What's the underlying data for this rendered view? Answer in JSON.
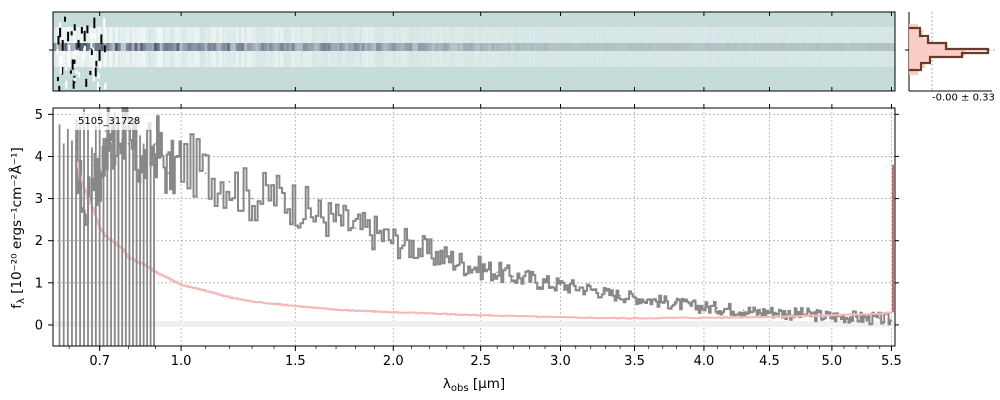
{
  "chart_data": {
    "type": "line",
    "title": "",
    "object_id": "5105_31728",
    "xlabel_main": "λ",
    "xlabel_sub": "obs",
    "xlabel_unit": " [μm]",
    "ylabel_text": "f",
    "ylabel_sub": "λ",
    "ylabel_units": " [10⁻²⁰ ergs⁻¹cm⁻²Å⁻¹]",
    "x_ticks": [
      "0.7",
      "1.0",
      "1.5",
      "2.0",
      "2.5",
      "3.0",
      "3.5",
      "4.0",
      "4.5",
      "5.0",
      "5.5"
    ],
    "x_tick_values": [
      0.7,
      1.0,
      1.5,
      2.0,
      2.5,
      3.0,
      3.5,
      4.0,
      4.5,
      5.0,
      5.5
    ],
    "y_ticks": [
      "0",
      "1",
      "2",
      "3",
      "4",
      "5"
    ],
    "y_tick_values": [
      0,
      1,
      2,
      3,
      4,
      5
    ],
    "xlim": [
      0.55,
      5.53
    ],
    "ylim": [
      -0.5,
      5.15
    ],
    "x_axis_scale": "power (compressed at short wavelengths)",
    "grid": true,
    "series": [
      {
        "color": "#888888",
        "x": [
          0.62,
          0.65,
          0.68,
          0.7,
          0.72,
          0.75,
          0.78,
          0.8,
          0.85,
          0.9,
          0.95,
          1.0,
          1.1,
          1.2,
          1.3,
          1.4,
          1.5,
          1.6,
          1.7,
          1.8,
          1.9,
          2.0,
          2.1,
          2.2,
          2.3,
          2.4,
          2.5,
          2.6,
          2.7,
          2.8,
          2.9,
          3.0,
          3.1,
          3.2,
          3.3,
          3.4,
          3.5,
          3.6,
          3.7,
          3.8,
          3.9,
          4.0,
          4.1,
          4.2,
          4.3,
          4.4,
          4.5,
          4.6,
          4.7,
          4.8,
          4.9,
          5.0,
          5.1,
          5.2,
          5.3,
          5.4,
          5.5
        ],
        "y": [
          4.2,
          2.5,
          3.8,
          3.2,
          4.6,
          4.0,
          4.8,
          4.3,
          3.8,
          4.3,
          3.6,
          3.9,
          3.6,
          3.4,
          3.0,
          3.1,
          2.9,
          2.6,
          2.5,
          2.3,
          2.2,
          2.0,
          1.9,
          1.7,
          1.6,
          1.45,
          1.35,
          1.25,
          1.15,
          1.1,
          1.0,
          0.95,
          0.9,
          0.85,
          0.75,
          0.7,
          0.65,
          0.6,
          0.55,
          0.5,
          0.45,
          0.42,
          0.4,
          0.38,
          0.35,
          0.3,
          0.32,
          0.28,
          0.26,
          0.25,
          0.22,
          0.2,
          0.2,
          0.18,
          0.15,
          0.15,
          0.1
        ]
      },
      {
        "color": "#f4b8b8",
        "x": [
          0.62,
          0.65,
          0.68,
          0.7,
          0.72,
          0.75,
          0.78,
          0.8,
          0.85,
          0.9,
          0.95,
          1.0,
          1.1,
          1.2,
          1.3,
          1.4,
          1.5,
          1.6,
          1.7,
          1.8,
          1.9,
          2.0,
          2.2,
          2.4,
          2.6,
          2.8,
          3.0,
          3.2,
          3.4,
          3.6,
          3.8,
          4.0,
          4.2,
          4.4,
          4.6,
          4.8,
          5.0,
          5.2,
          5.4,
          5.5
        ],
        "y": [
          3.9,
          3.2,
          2.7,
          2.3,
          2.1,
          1.95,
          1.8,
          1.6,
          1.45,
          1.25,
          1.1,
          0.95,
          0.8,
          0.65,
          0.55,
          0.5,
          0.45,
          0.4,
          0.36,
          0.34,
          0.32,
          0.3,
          0.27,
          0.24,
          0.22,
          0.2,
          0.18,
          0.17,
          0.16,
          0.16,
          0.17,
          0.17,
          0.18,
          0.19,
          0.2,
          0.22,
          0.23,
          0.25,
          0.27,
          0.3
        ]
      }
    ],
    "histogram_stat": "-0.00 ± 0.33"
  },
  "colors": {
    "spectrum": "#888888",
    "model": "#f4b8b8",
    "model_edge": "#b03a3a",
    "cutout_bg": "#c6dcdb",
    "histogram_fill": "#f7c9c0",
    "histogram_edge": "#6b3a2a",
    "grid": "#b0b0b0"
  }
}
